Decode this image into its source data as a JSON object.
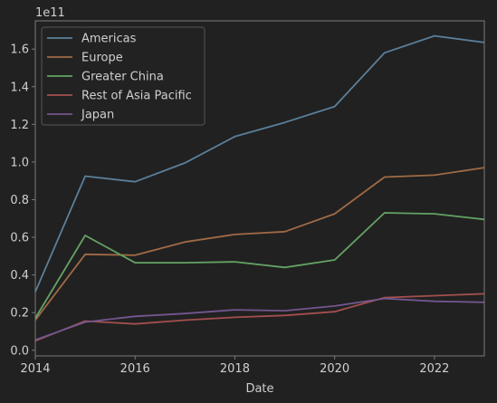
{
  "chart_data": {
    "type": "line",
    "x": [
      2014,
      2015,
      2016,
      2017,
      2018,
      2019,
      2020,
      2021,
      2022,
      2023
    ],
    "xlabel": "Date",
    "ylabel": "",
    "offset_text": "1e11",
    "xlim": [
      2014,
      2023
    ],
    "ylim": [
      -0.03,
      1.75
    ],
    "xticks": [
      2014,
      2016,
      2018,
      2020,
      2022
    ],
    "yticks": [
      0.0,
      0.2,
      0.4,
      0.6,
      0.8,
      1.0,
      1.2,
      1.4,
      1.6
    ],
    "ytick_labels": [
      "0.0",
      "0.2",
      "0.4",
      "0.6",
      "0.8",
      "1.0",
      "1.2",
      "1.4",
      "1.6"
    ],
    "y_unit_multiplier": 100000000000.0,
    "grid": false,
    "legend_position": "top-left",
    "series": [
      {
        "name": "Americas",
        "color": "#5b7f9a",
        "values": [
          0.31,
          0.925,
          0.895,
          0.995,
          1.135,
          1.21,
          1.295,
          1.58,
          1.67,
          1.635
        ]
      },
      {
        "name": "Europe",
        "color": "#a06a45",
        "values": [
          0.16,
          0.51,
          0.505,
          0.575,
          0.615,
          0.63,
          0.725,
          0.92,
          0.93,
          0.97
        ]
      },
      {
        "name": "Greater China",
        "color": "#64a264",
        "values": [
          0.17,
          0.61,
          0.465,
          0.465,
          0.47,
          0.44,
          0.48,
          0.73,
          0.725,
          0.695
        ]
      },
      {
        "name": "Rest of Asia Pacific",
        "color": "#a44f4f",
        "values": [
          0.05,
          0.155,
          0.14,
          0.16,
          0.175,
          0.185,
          0.205,
          0.28,
          0.29,
          0.3
        ]
      },
      {
        "name": "Japan",
        "color": "#73568f",
        "values": [
          0.055,
          0.15,
          0.18,
          0.195,
          0.215,
          0.21,
          0.235,
          0.275,
          0.26,
          0.255
        ]
      }
    ]
  }
}
